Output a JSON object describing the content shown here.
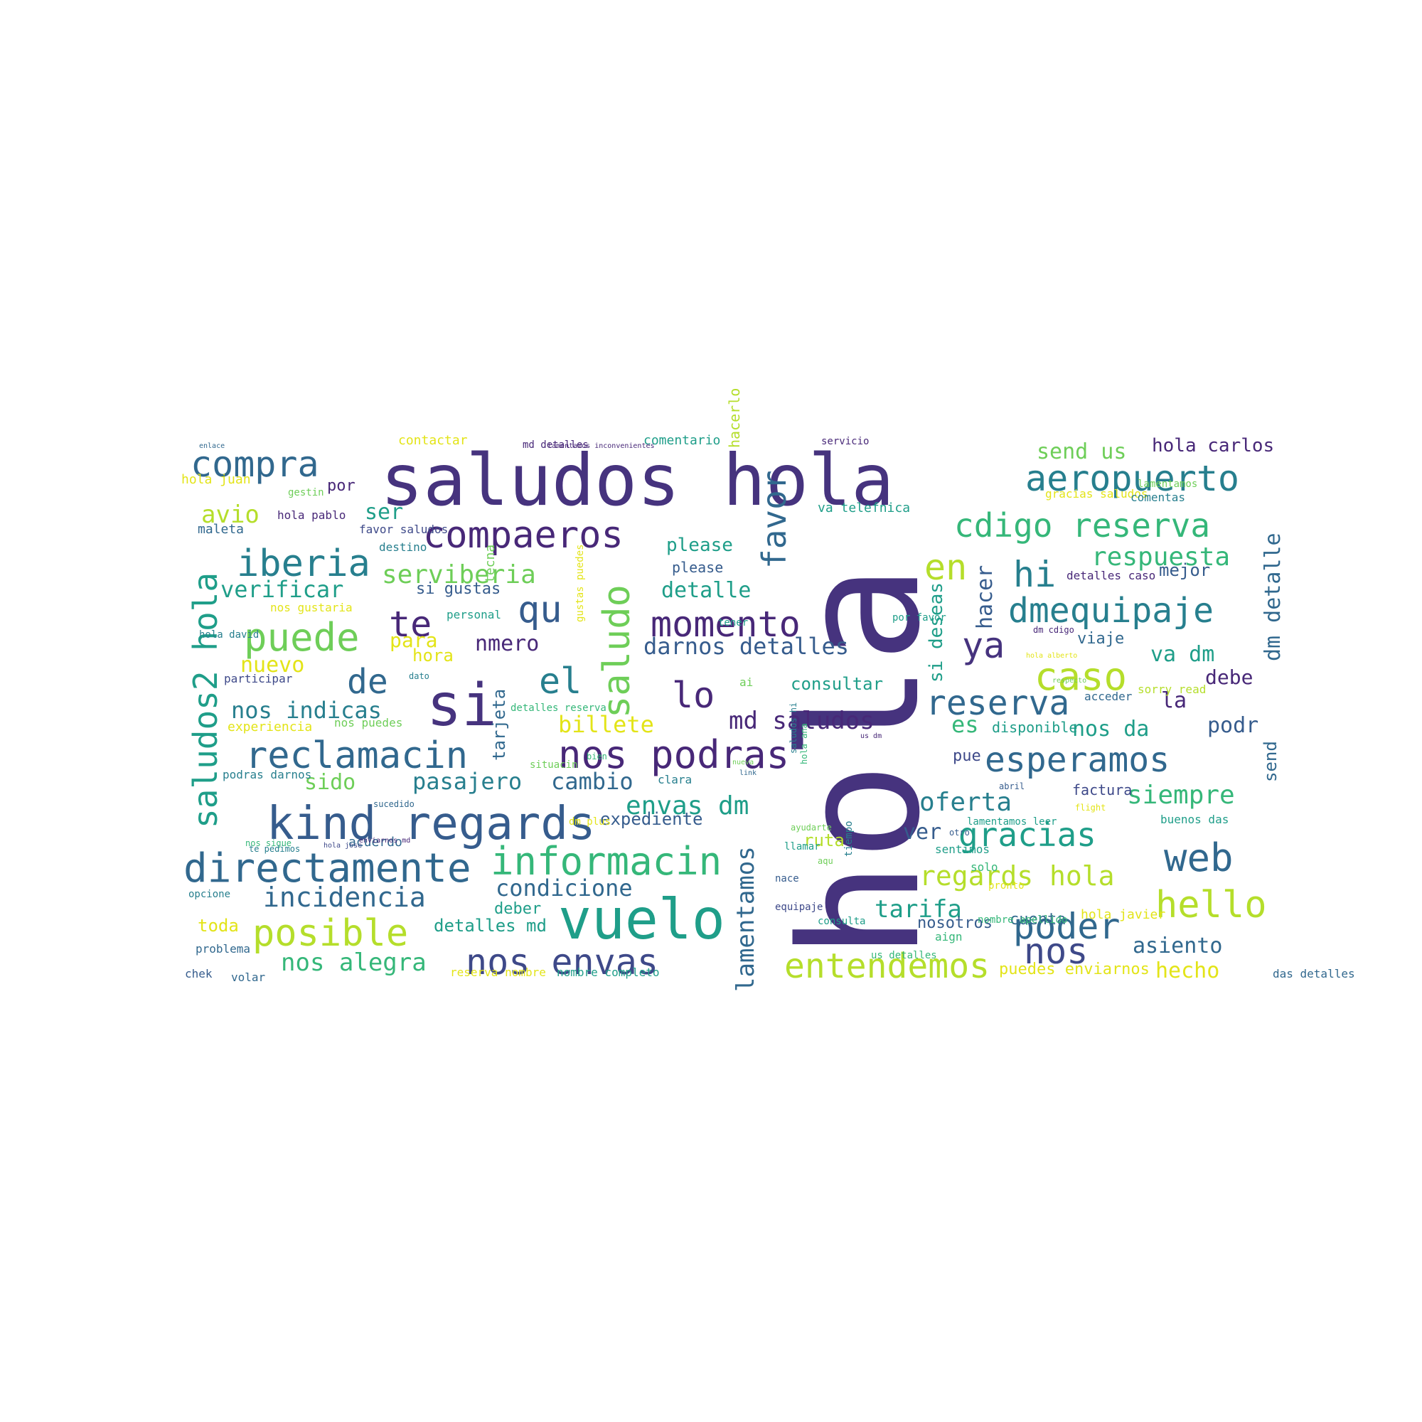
{
  "cloud": {
    "palette": {
      "dark_purple": "#46337e",
      "purple": "#482878",
      "deep_blue": "#365c8d",
      "blue": "#3e4989",
      "steel_blue": "#31688e",
      "teal": "#277f8e",
      "sea": "#1f9e89",
      "green": "#35b779",
      "light_green": "#6ece58",
      "lime": "#b5de2b",
      "yellow": "#e3e418"
    },
    "words": [
      "hola",
      "saludos hola",
      "vuelo",
      "si",
      "kind regards",
      "directamente",
      "informacin",
      "nos podras",
      "reclamacin",
      "compaeros",
      "puede",
      "posible",
      "iberia",
      "aeropuerto",
      "compra",
      "cdigo reserva",
      "dmequipaje",
      "momento",
      "entendemos",
      "nos envas",
      "esperamos",
      "reserva",
      "gracias",
      "web",
      "poder",
      "hello",
      "caso",
      "saludo",
      "favor",
      "saludos2 hola",
      "qu",
      "te",
      "el",
      "lo",
      "de",
      "ya",
      "hi",
      "nos",
      "en",
      "respuesta",
      "serviberia",
      "incidencia",
      "regards hola",
      "envas dm",
      "darnos detalles",
      "md saludos",
      "oferta",
      "siempre",
      "nos indicas",
      "nos alegra",
      "tarifa",
      "condicione",
      "cambio",
      "pasajero",
      "billete",
      "verificar",
      "lamentamos",
      "send us",
      "hola carlos",
      "detalle",
      "dm detalle",
      "avio",
      "nmero",
      "la",
      "es",
      "podr",
      "va dm",
      "nos da",
      "asiento",
      "hecho",
      "sido",
      "ser",
      "nuevo",
      "para",
      "ver",
      "debe",
      "hacer",
      "si deseas",
      "please",
      "send",
      "detalles md",
      "expediente",
      "ruta",
      "toda",
      "hora",
      "tarjeta",
      "viaje",
      "pue",
      "consultar",
      "mejor",
      "cuenta",
      "nosotros",
      "deber",
      "si gustas",
      "acuerdo",
      "por",
      "contactar",
      "comentario",
      "md detalles",
      "servicio",
      "hola juan",
      "gestin",
      "hola pablo",
      "maleta",
      "favor saludos",
      "destino",
      "please",
      "hacerlo",
      "va telefnica",
      "gracias saludos",
      "comentas",
      "detalles caso",
      "tecna",
      "personal",
      "acceder",
      "sorry read",
      "factura",
      "flight",
      "buenos das",
      "sentimos",
      "aign",
      "opcione",
      "problema",
      "chek",
      "volar",
      "reserva nombre",
      "nombre completo",
      "puedes enviarnos",
      "das detalles",
      "dato",
      "nos puedes",
      "experiencia",
      "participar",
      "podras darnos",
      "situacin",
      "clara",
      "disponible",
      "us dm",
      "lamentamos leer",
      "nos sigue",
      "hola jose",
      "nueva",
      "dm plus",
      "enviarnos md",
      "sucedido",
      "link",
      "tiempo",
      "te pedimos",
      "hola javier",
      "nombre apellido",
      "solo",
      "enlace",
      "lamentamos inconvenientes",
      "nos gustaria",
      "hola david",
      "ai",
      "por favor",
      "dm cdigo",
      "tener",
      "hola alberto",
      "respecto",
      "saludos hi",
      "hola ana",
      "gustas puedes",
      "detalles reserva",
      "lamentamos",
      "equipaje",
      "abril",
      "pronto",
      "consulta",
      "nace",
      "us detalles",
      "llamar",
      "bien",
      "ayudarte",
      "aqu",
      "otro"
    ]
  }
}
